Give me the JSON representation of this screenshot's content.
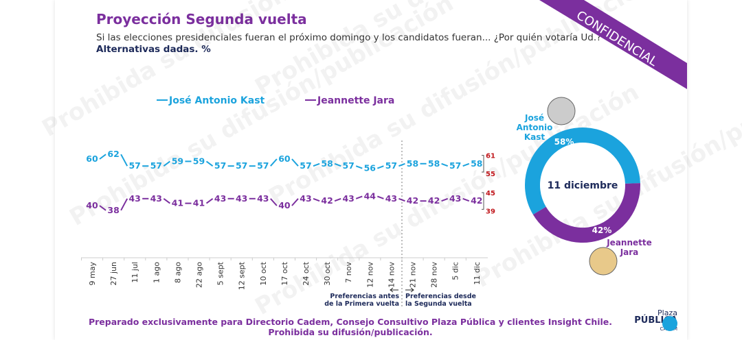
{
  "header": {
    "title": "Proyección Segunda vuelta",
    "subtitle": "Si las elecciones presidenciales fueran el próximo domingo y los candidatos fueran... ¿Por quién votaría Ud.?",
    "subtitle2": "Alternativas dadas. %",
    "badge": "CONFIDENCIAL"
  },
  "watermark": "Prohibida su difusión/publicación",
  "colors": {
    "kast": "#1ba3dd",
    "jara": "#7b2f9e",
    "range": "#c0161b"
  },
  "chart_data": [
    {
      "type": "line",
      "categories": [
        "9 may",
        "27 jun",
        "11 jul",
        "1 ago",
        "8 ago",
        "22 ago",
        "5 sept",
        "12 sept",
        "10 oct",
        "17 oct",
        "24 oct",
        "30 oct",
        "7 nov",
        "12 nov",
        "14 nov",
        "21 nov",
        "28 nov",
        "5 dic",
        "11 dic"
      ],
      "series": [
        {
          "name": "José Antonio Kast",
          "values": [
            60,
            62,
            57,
            57,
            59,
            59,
            57,
            57,
            57,
            60,
            57,
            58,
            57,
            56,
            57,
            58,
            58,
            57,
            58
          ],
          "range": [
            55,
            61
          ]
        },
        {
          "name": "Jeannette Jara",
          "values": [
            40,
            38,
            43,
            43,
            41,
            41,
            43,
            43,
            43,
            40,
            43,
            42,
            43,
            44,
            43,
            42,
            42,
            43,
            42
          ],
          "range": [
            39,
            45
          ]
        }
      ],
      "annotations": {
        "before": "Preferencias antes de la Primera vuelta",
        "after": "Preferencias desde la Segunda vuelta"
      },
      "legend": "top"
    },
    {
      "type": "pie",
      "title": "11 diciembre",
      "slices": [
        {
          "name": "José Antonio Kast",
          "value": 58,
          "label": "58%"
        },
        {
          "name": "Jeannette Jara",
          "value": 42,
          "label": "42%"
        }
      ]
    }
  ],
  "donut_labels": {
    "kast": "José Antonio Kast",
    "jara": "Jeannette Jara"
  },
  "footer": {
    "line1": "Preparado exclusivamente para Directorio Cadem, Consejo Consultivo Plaza Pública y clientes Insight Chile.",
    "line2": "Prohibida su difusión/publicación."
  },
  "logo": {
    "top": "Plaza",
    "main": "PÚBLICA",
    "bottom": "CADEM"
  }
}
